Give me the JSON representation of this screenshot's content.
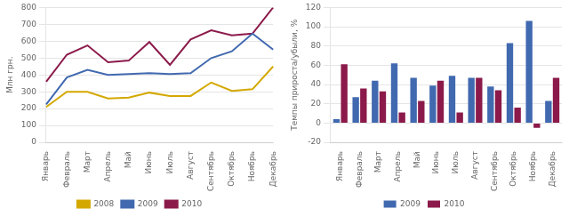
{
  "chart_data": [
    {
      "type": "line",
      "categories": [
        "Январь",
        "Февраль",
        "Март",
        "Апрель",
        "Май",
        "Июнь",
        "Июль",
        "Август",
        "Сентябрь",
        "Октябрь",
        "Ноябрь",
        "Декабрь"
      ],
      "series": [
        {
          "name": "2008",
          "color": "#d4a800",
          "values": [
            210,
            300,
            300,
            260,
            265,
            295,
            275,
            275,
            355,
            305,
            315,
            450
          ]
        },
        {
          "name": "2009",
          "color": "#4169b0",
          "values": [
            225,
            385,
            430,
            400,
            405,
            410,
            405,
            410,
            500,
            540,
            645,
            550
          ]
        },
        {
          "name": "2010",
          "color": "#8b1a4a",
          "values": [
            360,
            520,
            575,
            475,
            485,
            595,
            460,
            610,
            665,
            635,
            645,
            800
          ]
        }
      ],
      "ylabel": "Млн грн.",
      "ylim": [
        0,
        800
      ],
      "yticks": [
        0,
        100,
        200,
        300,
        400,
        500,
        600,
        700,
        800
      ],
      "grid": true,
      "legend": "bottom"
    },
    {
      "type": "bar",
      "categories": [
        "Январь",
        "Февраль",
        "Март",
        "Апрель",
        "Май",
        "Июнь",
        "Июль",
        "Август",
        "Сентябрь",
        "Октябрь",
        "Ноябрь",
        "Декабрь"
      ],
      "series": [
        {
          "name": "2009",
          "color": "#4169b0",
          "values": [
            4,
            27,
            44,
            62,
            47,
            39,
            49,
            47,
            38,
            83,
            106,
            23
          ]
        },
        {
          "name": "2010",
          "color": "#8b1a4a",
          "values": [
            61,
            36,
            33,
            11,
            23,
            44,
            11,
            47,
            34,
            16,
            -5,
            47
          ]
        }
      ],
      "ylabel": "Темпы прироста/убыли, %",
      "ylim": [
        -20,
        120
      ],
      "yticks": [
        -20,
        0,
        20,
        40,
        60,
        80,
        100,
        120
      ],
      "grid": true,
      "legend": "bottom"
    }
  ]
}
